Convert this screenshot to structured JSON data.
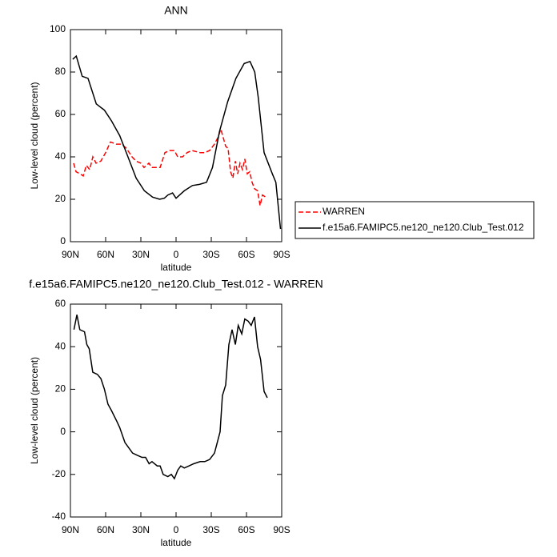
{
  "chart_data": [
    {
      "type": "line",
      "title": "ANN",
      "xlabel": "latitude",
      "ylabel": "Low-level cloud (percent)",
      "xlim": [
        90,
        -90
      ],
      "ylim": [
        0,
        100
      ],
      "xticks": [
        {
          "value": 90,
          "label": "90N"
        },
        {
          "value": 60,
          "label": "60N"
        },
        {
          "value": 30,
          "label": "30N"
        },
        0,
        {
          "value": -30,
          "label": "30S"
        },
        {
          "value": -60,
          "label": "60S"
        },
        {
          "value": -90,
          "label": "90S"
        }
      ],
      "yticks": [
        0,
        20,
        40,
        60,
        80,
        100
      ],
      "legend": "right",
      "series": [
        {
          "name": "WARREN",
          "color": "#ff0000",
          "dashed": true,
          "x": [
            87.3,
            85.2,
            81.8,
            79.1,
            76.4,
            73.6,
            70.9,
            68.2,
            64.1,
            60,
            55.9,
            51.1,
            46.4,
            42.3,
            37.5,
            34.1,
            30,
            27.3,
            23.2,
            20.5,
            17,
            13.6,
            9.5,
            5.5,
            1.4,
            -1.4,
            -5.5,
            -9.5,
            -13.6,
            -20.5,
            -24.5,
            -28.6,
            -32.7,
            -35.5,
            -38.2,
            -40.2,
            -42.3,
            -44.3,
            -46.4,
            -48.4,
            -50.5,
            -52.5,
            -54.5,
            -56.6,
            -58.6,
            -60.7,
            -62.7,
            -64.8,
            -66.8,
            -69.5,
            -71.6,
            -73.6,
            -76.4
          ],
          "values": [
            37,
            33,
            32,
            31,
            36,
            34,
            40,
            37,
            38,
            42,
            47,
            46,
            46,
            44,
            40,
            38,
            37,
            35,
            37,
            35,
            35,
            35,
            42,
            43,
            43,
            40,
            40,
            42,
            43,
            42,
            42,
            43,
            46,
            49,
            53,
            49,
            45,
            44,
            33,
            30,
            38,
            32,
            37,
            34,
            39,
            32,
            33,
            28,
            25,
            24,
            17,
            22,
            21
          ]
        },
        {
          "name": "f.e15a6.FAMIPC5.ne120_ne120.Club_Test.012",
          "color": "#000000",
          "dashed": false,
          "x": [
            88,
            85,
            80,
            75,
            68,
            61,
            55,
            48,
            41,
            34,
            27,
            20,
            14,
            10,
            7,
            3,
            0,
            -3,
            -7,
            -14,
            -20,
            -26,
            -31,
            -37,
            -44,
            -51,
            -58,
            -63,
            -67,
            -70,
            -75,
            -82,
            -85,
            -89
          ],
          "values": [
            86,
            87.5,
            78,
            77,
            65,
            62,
            57,
            50,
            40,
            30,
            24,
            21,
            20,
            20.5,
            22,
            23,
            20.5,
            22,
            24,
            26.5,
            27,
            28,
            35,
            52,
            66,
            77,
            84,
            85,
            80,
            68,
            42,
            32,
            28,
            6
          ]
        }
      ]
    },
    {
      "type": "line",
      "title": "f.e15a6.FAMIPC5.ne120_ne120.Club_Test.012 - WARREN",
      "xlabel": "latitude",
      "ylabel": "Low-level cloud (percent)",
      "xlim": [
        90,
        -90
      ],
      "ylim": [
        -40,
        60
      ],
      "xticks": [
        {
          "value": 90,
          "label": "90N"
        },
        {
          "value": 60,
          "label": "60N"
        },
        {
          "value": 30,
          "label": "30N"
        },
        0,
        {
          "value": -30,
          "label": "30S"
        },
        {
          "value": -60,
          "label": "60S"
        },
        {
          "value": -90,
          "label": "90S"
        }
      ],
      "yticks": [
        -40,
        -20,
        0,
        20,
        40,
        60
      ],
      "color": "#000000",
      "x": [
        87,
        84.5,
        82,
        78,
        76,
        74,
        71,
        67,
        64,
        61,
        58,
        55,
        50.5,
        48,
        43.6,
        41,
        37,
        33,
        29,
        26,
        23,
        20.5,
        16,
        13.6,
        11,
        7,
        4,
        1.4,
        -1.4,
        -4,
        -7,
        -11,
        -15,
        -20.5,
        -24.5,
        -28.6,
        -32.7,
        -37.5,
        -39.5,
        -42.3,
        -45,
        -47.7,
        -50.5,
        -53,
        -56,
        -58.6,
        -61.4,
        -64,
        -66.8,
        -69.5,
        -72,
        -75,
        -77.7
      ],
      "values": [
        48,
        55,
        48,
        47,
        41,
        39,
        28,
        27,
        25,
        20,
        13,
        10,
        5,
        2,
        -5,
        -7,
        -10,
        -11,
        -12,
        -12,
        -15,
        -14,
        -16,
        -16,
        -20,
        -21,
        -20,
        -22,
        -18,
        -16,
        -17,
        -16,
        -15,
        -14,
        -14,
        -13,
        -10,
        0,
        17,
        22,
        41,
        48,
        41,
        50,
        46,
        53,
        52,
        50,
        54,
        40,
        34,
        19,
        16
      ]
    }
  ]
}
